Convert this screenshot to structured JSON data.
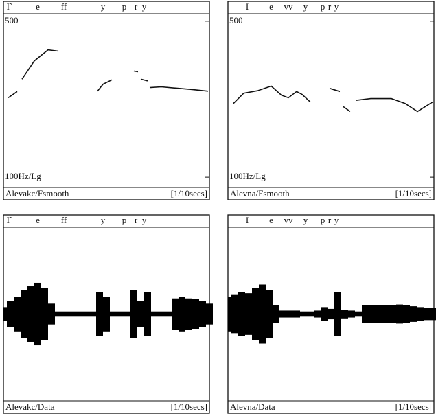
{
  "chart_data": [
    {
      "type": "line",
      "title": "Alevakc/Fsmooth",
      "xlabel": "[1/10secs]",
      "segment_labels": [
        "I`",
        "e",
        "ff",
        "y",
        "p",
        "r",
        "y"
      ],
      "segment_x": [
        0.9,
        5,
        8.8,
        14.5,
        17.6,
        19.3,
        20.5
      ],
      "x": [
        0.7,
        2.0,
        2.3,
        2.7,
        4.5,
        6.5,
        8.0,
        11.0,
        13.7,
        14.5,
        15.8,
        17.0,
        19.0,
        19.6,
        19.8,
        20.0,
        21.0,
        21.1,
        21.3,
        23.0,
        25.5,
        27.5,
        29.8
      ],
      "values": [
        227,
        242,
        null,
        275,
        332,
        372,
        367,
        null,
        243,
        261,
        273,
        null,
        299,
        297,
        null,
        275,
        270,
        null,
        252,
        254,
        250,
        247,
        243
      ],
      "color": "#111111",
      "log_scale": true,
      "xlim": [
        0,
        30
      ],
      "ylim": [
        90,
        540
      ],
      "yticks": [
        500,
        {
          "value": 100,
          "label": "100Hz/Lg"
        }
      ]
    },
    {
      "type": "line",
      "title": "Alevna/Fsmooth",
      "xlabel": "[1/10secs]",
      "segment_labels": [
        "I",
        "e",
        "vv",
        "y",
        "p",
        "r",
        "y"
      ],
      "segment_x": [
        2.8,
        6.3,
        8.8,
        11.3,
        13.8,
        14.8,
        15.8
      ],
      "x": [
        0.8,
        2.3,
        4.3,
        6.3,
        7.8,
        8.8,
        10.0,
        10.8,
        12.0,
        13.5,
        14.8,
        16.3,
        16.5,
        16.8,
        17.8,
        18.2,
        18.6,
        20.8,
        23.8,
        25.8,
        27.6,
        29.8
      ],
      "values": [
        214,
        238,
        244,
        256,
        233,
        227,
        242,
        235,
        217,
        null,
        250,
        242,
        null,
        207,
        197,
        null,
        221,
        225,
        225,
        214,
        197,
        217
      ],
      "color": "#111111",
      "log_scale": true,
      "xlim": [
        0,
        30
      ],
      "ylim": [
        90,
        540
      ],
      "yticks": [
        500,
        {
          "value": 100,
          "label": "100Hz/Lg"
        }
      ]
    },
    {
      "type": "area",
      "title": "Alevakc/Data",
      "xlabel": "[1/10secs]",
      "segment_labels": [
        "I`",
        "e",
        "ff",
        "y",
        "p",
        "r",
        "y"
      ],
      "segment_x": [
        0.9,
        5,
        8.8,
        14.5,
        17.6,
        19.3,
        20.5
      ],
      "x": [
        0,
        1,
        2,
        3,
        4,
        5,
        6,
        7,
        8,
        9,
        10,
        11,
        12,
        13,
        14,
        15,
        16,
        17,
        18,
        19,
        20,
        21,
        22,
        23,
        24,
        25,
        26,
        27,
        28,
        29,
        30
      ],
      "values": [
        0.08,
        0.15,
        0.2,
        0.28,
        0.32,
        0.36,
        0.3,
        0.12,
        0.03,
        0.03,
        0.03,
        0.03,
        0.03,
        0.03,
        0.25,
        0.2,
        0.03,
        0.03,
        0.03,
        0.28,
        0.15,
        0.25,
        0.03,
        0.03,
        0.03,
        0.18,
        0.2,
        0.18,
        0.17,
        0.15,
        0.12
      ],
      "color": "#000000",
      "xlim": [
        0,
        30
      ],
      "ylim": [
        -1,
        1
      ]
    },
    {
      "type": "area",
      "title": "Alevna/Data",
      "xlabel": "[1/10secs]",
      "segment_labels": [
        "I",
        "e",
        "vv",
        "y",
        "p",
        "r",
        "y"
      ],
      "segment_x": [
        2.8,
        6.3,
        8.8,
        11.3,
        13.8,
        14.8,
        15.8
      ],
      "x": [
        0,
        1,
        2,
        3,
        4,
        5,
        6,
        7,
        8,
        9,
        10,
        11,
        12,
        13,
        14,
        15,
        16,
        17,
        18,
        19,
        20,
        21,
        22,
        23,
        24,
        25,
        26,
        27,
        28,
        29,
        30
      ],
      "values": [
        0.2,
        0.22,
        0.25,
        0.24,
        0.3,
        0.34,
        0.28,
        0.1,
        0.04,
        0.04,
        0.04,
        0.03,
        0.03,
        0.04,
        0.08,
        0.06,
        0.25,
        0.05,
        0.04,
        0.03,
        0.1,
        0.1,
        0.1,
        0.1,
        0.1,
        0.11,
        0.1,
        0.09,
        0.08,
        0.07,
        0.07
      ],
      "color": "#000000",
      "xlim": [
        0,
        30
      ],
      "ylim": [
        -1,
        1
      ]
    }
  ]
}
